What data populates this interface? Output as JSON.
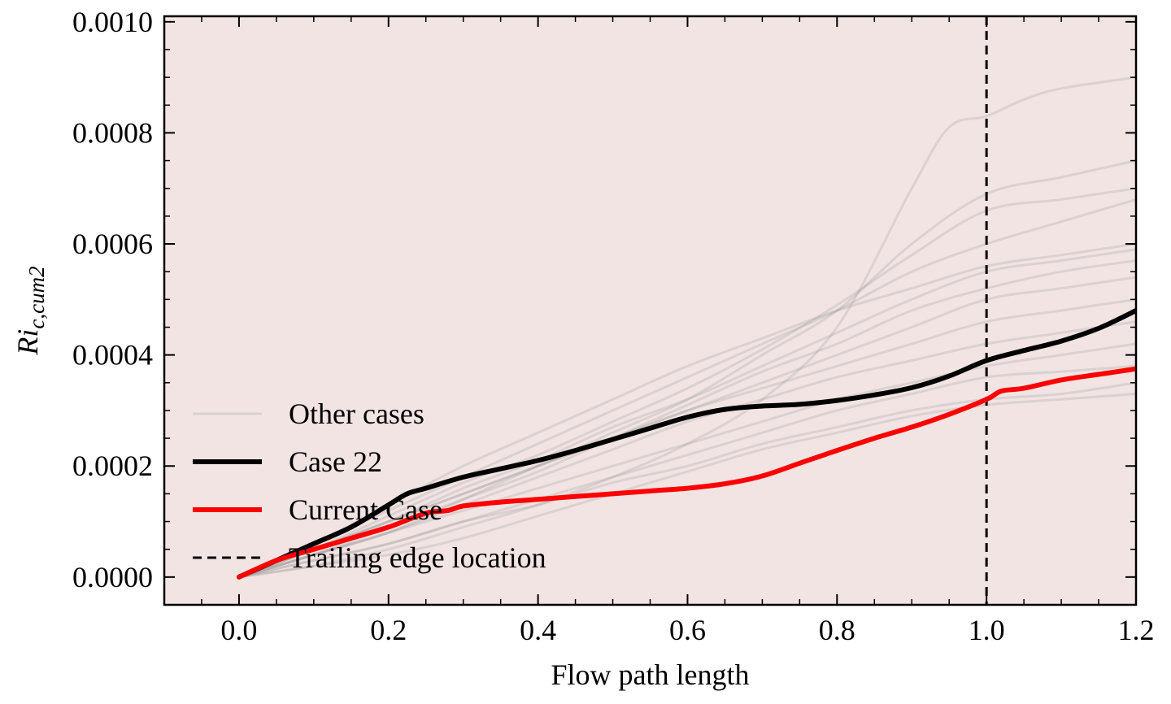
{
  "chart_data": {
    "type": "line",
    "xlabel": "Flow path length",
    "ylabel": "Ri_c,cum2",
    "ylabel_main": "Ri",
    "ylabel_sub": "c,cum2",
    "xlim": [
      -0.1,
      1.2
    ],
    "ylim": [
      -5e-05,
      0.00101
    ],
    "x_ticks": [
      0.0,
      0.2,
      0.4,
      0.6,
      0.8,
      1.0,
      1.2
    ],
    "x_tick_labels": [
      "0.0",
      "0.2",
      "0.4",
      "0.6",
      "0.8",
      "1.0",
      "1.2"
    ],
    "y_ticks": [
      0.0,
      0.0002,
      0.0004,
      0.0006,
      0.0008,
      0.001
    ],
    "y_tick_labels": [
      "0.0000",
      "0.0002",
      "0.0004",
      "0.0006",
      "0.0008",
      "0.0010"
    ],
    "grid": false,
    "legend_position": "lower-left",
    "background_color": "#f2e4e3",
    "other_cases": {
      "name": "Other cases",
      "color": "#999999",
      "curves": [
        {
          "x": [
            0.0,
            0.1,
            0.2,
            0.3,
            0.4,
            0.5,
            0.6,
            0.7,
            0.8,
            0.9,
            0.95,
            1.0,
            1.05,
            1.1,
            1.2
          ],
          "y": [
            0.0,
            2e-05,
            5e-05,
            9e-05,
            0.00013,
            0.00018,
            0.00024,
            0.00032,
            0.00045,
            0.0007,
            0.00081,
            0.00083,
            0.00086,
            0.00088,
            0.0009
          ]
        },
        {
          "x": [
            0.0,
            0.1,
            0.2,
            0.3,
            0.4,
            0.5,
            0.6,
            0.7,
            0.8,
            0.9,
            1.0,
            1.1,
            1.2
          ],
          "y": [
            0.0,
            4e-05,
            8e-05,
            0.00014,
            0.0002,
            0.00026,
            0.00032,
            0.0004,
            0.00048,
            0.0006,
            0.00069,
            0.00072,
            0.00075
          ]
        },
        {
          "x": [
            0.0,
            0.1,
            0.2,
            0.3,
            0.4,
            0.5,
            0.6,
            0.7,
            0.8,
            0.9,
            1.0,
            1.1,
            1.2
          ],
          "y": [
            0.0,
            5e-05,
            0.00011,
            0.00017,
            0.00022,
            0.00028,
            0.00034,
            0.00041,
            0.00049,
            0.00058,
            0.00066,
            0.00068,
            0.0007
          ]
        },
        {
          "x": [
            0.0,
            0.1,
            0.2,
            0.3,
            0.4,
            0.5,
            0.6,
            0.7,
            0.8,
            0.9,
            1.0,
            1.1,
            1.2
          ],
          "y": [
            0.0,
            6e-05,
            0.00012,
            0.00018,
            0.00024,
            0.0003,
            0.00036,
            0.00042,
            0.00048,
            0.00055,
            0.0006,
            0.00064,
            0.00068
          ]
        },
        {
          "x": [
            0.0,
            0.1,
            0.2,
            0.3,
            0.4,
            0.5,
            0.6,
            0.7,
            0.8,
            0.9,
            1.0,
            1.1,
            1.2
          ],
          "y": [
            0.0,
            5e-05,
            0.0001,
            0.00016,
            0.00021,
            0.00027,
            0.00032,
            0.00038,
            0.00044,
            0.0005,
            0.00055,
            0.00057,
            0.00059
          ]
        },
        {
          "x": [
            0.0,
            0.1,
            0.2,
            0.3,
            0.4,
            0.5,
            0.6,
            0.7,
            0.8,
            0.9,
            1.0,
            1.1,
            1.2
          ],
          "y": [
            0.0,
            4e-05,
            9e-05,
            0.00014,
            0.00019,
            0.00025,
            0.00031,
            0.00037,
            0.00042,
            0.00048,
            0.00052,
            0.00055,
            0.00057
          ]
        },
        {
          "x": [
            0.0,
            0.1,
            0.2,
            0.3,
            0.4,
            0.5,
            0.6,
            0.7,
            0.8,
            0.9,
            1.0,
            1.1,
            1.2
          ],
          "y": [
            0.0,
            5e-05,
            0.0001,
            0.00015,
            0.0002,
            0.00025,
            0.0003,
            0.00035,
            0.0004,
            0.00045,
            0.0005,
            0.00052,
            0.00054
          ]
        },
        {
          "x": [
            0.0,
            0.1,
            0.2,
            0.3,
            0.4,
            0.5,
            0.6,
            0.7,
            0.8,
            0.9,
            1.0,
            1.1,
            1.2
          ],
          "y": [
            0.0,
            5e-05,
            0.0001,
            0.00015,
            0.0002,
            0.00025,
            0.0003,
            0.00034,
            0.00038,
            0.00042,
            0.00046,
            0.00048,
            0.0005
          ]
        },
        {
          "x": [
            0.0,
            0.1,
            0.2,
            0.3,
            0.4,
            0.5,
            0.6,
            0.7,
            0.8,
            0.9,
            1.0,
            1.1,
            1.2
          ],
          "y": [
            0.0,
            4e-05,
            8e-05,
            0.00013,
            0.00018,
            0.00023,
            0.00028,
            0.00032,
            0.00036,
            0.00039,
            0.00042,
            0.00044,
            0.00046
          ]
        },
        {
          "x": [
            0.0,
            0.1,
            0.2,
            0.3,
            0.4,
            0.5,
            0.6,
            0.7,
            0.8,
            0.9,
            1.0,
            1.1,
            1.2
          ],
          "y": [
            0.0,
            4e-05,
            8e-05,
            0.00012,
            0.00016,
            0.0002,
            0.00024,
            0.00028,
            0.00032,
            0.00035,
            0.00038,
            0.0004,
            0.00042
          ]
        },
        {
          "x": [
            0.0,
            0.1,
            0.2,
            0.3,
            0.4,
            0.5,
            0.6,
            0.7,
            0.8,
            0.9,
            1.0,
            1.1,
            1.2
          ],
          "y": [
            0.0,
            3e-05,
            6e-05,
            0.0001,
            0.00014,
            0.00018,
            0.00022,
            0.00026,
            0.0003,
            0.00033,
            0.00036,
            0.00037,
            0.00038
          ]
        },
        {
          "x": [
            0.0,
            0.1,
            0.2,
            0.3,
            0.4,
            0.5,
            0.6,
            0.7,
            0.8,
            0.9,
            1.0,
            1.1,
            1.2
          ],
          "y": [
            0.0,
            3e-05,
            6e-05,
            0.0001,
            0.00013,
            0.00017,
            0.0002,
            0.00024,
            0.00027,
            0.0003,
            0.00032,
            0.00033,
            0.00035
          ]
        },
        {
          "x": [
            0.0,
            0.1,
            0.2,
            0.3,
            0.4,
            0.5,
            0.6,
            0.7,
            0.8,
            0.9,
            1.0,
            1.1,
            1.2
          ],
          "y": [
            0.0,
            2e-05,
            4e-05,
            7e-05,
            0.00011,
            0.00015,
            0.00019,
            0.00023,
            0.00026,
            0.00029,
            0.00031,
            0.00032,
            0.00033
          ]
        },
        {
          "x": [
            0.0,
            0.1,
            0.2,
            0.3,
            0.4,
            0.5,
            0.6,
            0.7,
            0.8,
            0.9,
            1.0,
            1.1,
            1.2
          ],
          "y": [
            0.0,
            6e-05,
            0.00013,
            0.0002,
            0.00026,
            0.00032,
            0.00038,
            0.00043,
            0.00048,
            0.00052,
            0.00056,
            0.00058,
            0.0006
          ]
        }
      ]
    },
    "series": [
      {
        "name": "Case 22",
        "color": "#000000",
        "x": [
          0.0,
          0.05,
          0.1,
          0.15,
          0.2,
          0.225,
          0.25,
          0.3,
          0.35,
          0.4,
          0.45,
          0.5,
          0.55,
          0.6,
          0.65,
          0.7,
          0.75,
          0.8,
          0.85,
          0.9,
          0.95,
          1.0,
          1.05,
          1.1,
          1.15,
          1.2
        ],
        "y": [
          0.0,
          3e-05,
          6e-05,
          9e-05,
          0.00013,
          0.00015,
          0.00016,
          0.00018,
          0.000195,
          0.00021,
          0.000228,
          0.000248,
          0.000268,
          0.000288,
          0.000302,
          0.000308,
          0.000311,
          0.000318,
          0.000328,
          0.000341,
          0.000362,
          0.00039,
          0.000408,
          0.000425,
          0.000448,
          0.00048
        ]
      },
      {
        "name": "Current Case",
        "color": "#ff0000",
        "x": [
          0.0,
          0.05,
          0.1,
          0.15,
          0.2,
          0.25,
          0.28,
          0.3,
          0.35,
          0.4,
          0.45,
          0.5,
          0.55,
          0.6,
          0.65,
          0.7,
          0.75,
          0.8,
          0.85,
          0.9,
          0.95,
          1.0,
          1.02,
          1.05,
          1.1,
          1.15,
          1.2
        ],
        "y": [
          0.0,
          3e-05,
          5e-05,
          7e-05,
          9e-05,
          0.000115,
          0.00012,
          0.000128,
          0.000135,
          0.00014,
          0.000145,
          0.00015,
          0.000155,
          0.00016,
          0.000168,
          0.000182,
          0.000205,
          0.000228,
          0.00025,
          0.00027,
          0.000293,
          0.00032,
          0.000335,
          0.00034,
          0.000355,
          0.000365,
          0.000375
        ]
      }
    ],
    "reference_lines": [
      {
        "name": "Trailing edge location",
        "x": 1.0,
        "style": "dashed",
        "color": "#000000"
      }
    ],
    "legend": [
      "Other cases",
      "Case 22",
      "Current Case",
      "Trailing edge location"
    ]
  }
}
